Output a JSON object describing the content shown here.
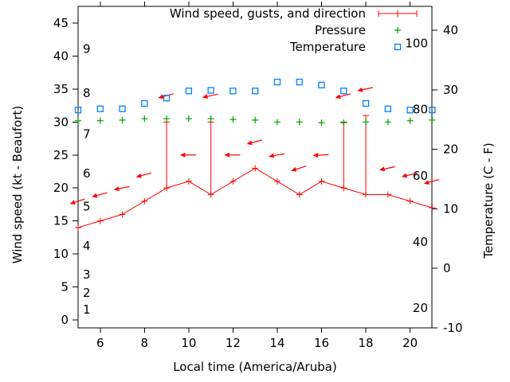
{
  "chart_data": {
    "type": "line",
    "title": "",
    "xlabel": "Local time (America/Aruba)",
    "ylabel_left": "Wind speed (kt - Beaufort)",
    "ylabel_right": "Temperature (C - F)",
    "x_range": [
      5,
      21
    ],
    "x_ticks": [
      6,
      8,
      10,
      12,
      14,
      16,
      18,
      20
    ],
    "left_axis_ticks_kt": [
      0,
      5,
      10,
      15,
      20,
      25,
      30,
      35,
      40,
      45
    ],
    "right_axis_ticks_c": [
      -10,
      0,
      10,
      20,
      30,
      40
    ],
    "left_axis_range_kt": [
      -1.2,
      47.5
    ],
    "right_axis_range_c": [
      -10,
      44
    ],
    "grid": false,
    "beaufort_scale_labels": [
      {
        "label": "1",
        "kt": 1.55
      },
      {
        "label": "2",
        "kt": 4.1
      },
      {
        "label": "3",
        "kt": 6.9
      },
      {
        "label": "4",
        "kt": 11.2
      },
      {
        "label": "5",
        "kt": 17.2
      },
      {
        "label": "6",
        "kt": 22.2
      },
      {
        "label": "7",
        "kt": 28.2
      },
      {
        "label": "8",
        "kt": 34.4
      },
      {
        "label": "9",
        "kt": 41.1
      }
    ],
    "fahrenheit_scale_labels": [
      20,
      40,
      60,
      80,
      100
    ],
    "hours": [
      5,
      6,
      7,
      8,
      9,
      10,
      11,
      12,
      13,
      14,
      15,
      16,
      17,
      18,
      19,
      20,
      21
    ],
    "series": [
      {
        "name": "Wind speed, gusts, and direction",
        "color": "#ff0000",
        "style": "line with + points, gust error bars and wind-direction arrows",
        "wind_kt": [
          14,
          15,
          16,
          18,
          20,
          21,
          19,
          21,
          23,
          21,
          19,
          21,
          20,
          19,
          19,
          18,
          17
        ],
        "gust_kt": [
          14,
          15,
          16,
          18,
          30,
          21,
          30,
          21,
          23,
          21,
          19,
          21,
          30,
          31,
          19,
          18,
          17
        ],
        "arrow_height_kt": [
          18,
          19,
          20,
          22,
          34,
          25,
          34,
          25,
          27,
          25,
          23,
          25,
          34,
          35,
          23,
          22,
          21
        ],
        "arrow_tilt_deg": [
          18,
          15,
          12,
          15,
          15,
          0,
          12,
          0,
          15,
          10,
          18,
          3,
          15,
          12,
          12,
          12,
          15
        ],
        "arrow_direction": "pointing left (easterly wind)"
      },
      {
        "name": "Pressure",
        "color": "#00a000",
        "style": "+ points",
        "y_on_left_axis_kt": [
          30.2,
          30.2,
          30.3,
          30.5,
          30.5,
          30.5,
          30.5,
          30.4,
          30.3,
          30.0,
          30.0,
          29.9,
          29.9,
          30.0,
          30.0,
          30.2,
          30.3
        ],
        "note": "plotted without a visible pressure scale"
      },
      {
        "name": "Temperature",
        "color": "#0080ff",
        "style": "open square points",
        "celsius": [
          26.6,
          26.8,
          26.8,
          27.7,
          28.6,
          29.8,
          29.9,
          29.8,
          29.8,
          31.3,
          31.3,
          30.8,
          29.8,
          27.7,
          26.8,
          26.6,
          26.6
        ]
      }
    ],
    "legend": {
      "position": "top-right-inside",
      "entries": [
        "Wind speed, gusts, and direction",
        "Pressure",
        "Temperature"
      ]
    }
  }
}
